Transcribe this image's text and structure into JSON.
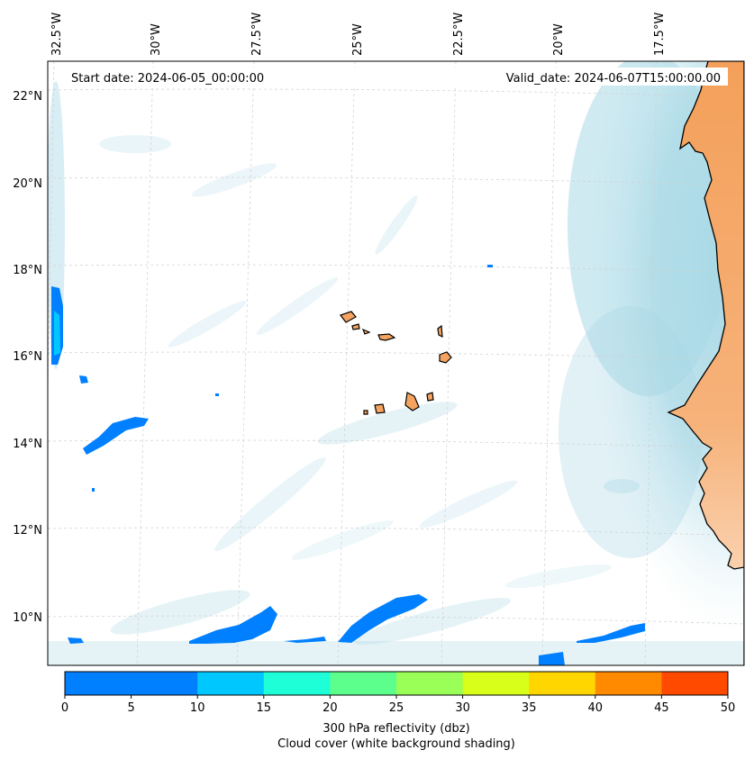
{
  "header": {
    "start_date": "Start date: 2024-06-05_00:00:00",
    "valid_date": "Valid_date: 2024-06-07T15:00:00.00"
  },
  "axes": {
    "lon_labels": [
      "32.5°W",
      "30°W",
      "27.5°W",
      "25°W",
      "22.5°W",
      "20°W",
      "17.5°W"
    ],
    "lat_labels": [
      "22°N",
      "20°N",
      "18°N",
      "16°N",
      "14°N",
      "12°N",
      "10°N"
    ]
  },
  "colorbar": {
    "ticks": [
      "0",
      "5",
      "10",
      "15",
      "20",
      "25",
      "30",
      "35",
      "40",
      "45",
      "50"
    ],
    "bin_colors": [
      "#0080ff",
      "#00c8ff",
      "#1effd8",
      "#5cff8c",
      "#9aff57",
      "#d8ff1a",
      "#ffd600",
      "#ff8a00",
      "#ff4a00"
    ],
    "title_line1": "300 hPa reflectivity (dbz)",
    "title_line2": "Cloud cover (white background shading)"
  },
  "colors": {
    "ocean": "#ffffff",
    "land": "#f4a460",
    "cloud": "#a8d8e6",
    "reflectivity_low": "#0080ff"
  }
}
